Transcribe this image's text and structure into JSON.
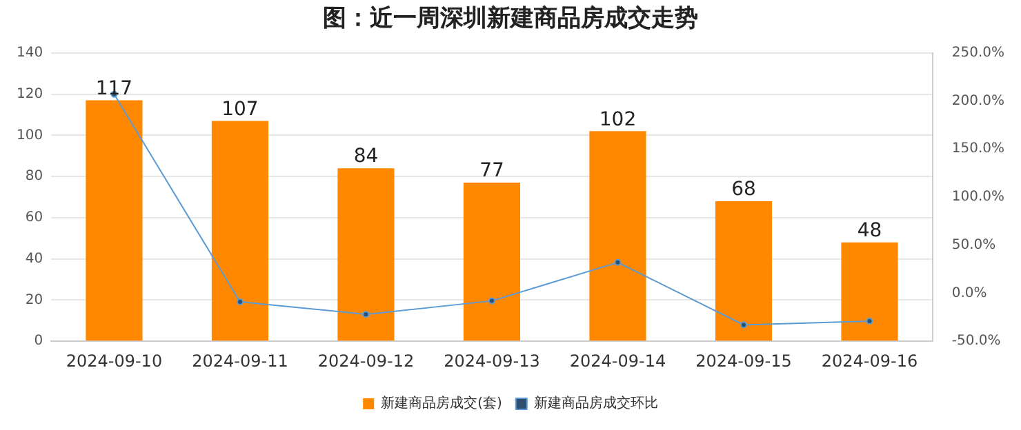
{
  "chart_data": {
    "type": "bar",
    "title": "图：近一周深圳新建商品房成交走势",
    "categories": [
      "2024-09-10",
      "2024-09-11",
      "2024-09-12",
      "2024-09-13",
      "2024-09-14",
      "2024-09-15",
      "2024-09-16"
    ],
    "series": [
      {
        "name": "新建商品房成交(套)",
        "color": "#ff8800",
        "values": [
          117,
          107,
          84,
          77,
          102,
          68,
          48
        ],
        "value_labels": [
          "117",
          "107",
          "84",
          "77",
          "102",
          "68",
          "48"
        ]
      },
      {
        "name": "新建商品房成交环比",
        "type": "line",
        "axis": "y2",
        "color": "#5b9bd5",
        "values": [
          207,
          -9,
          -22,
          -8,
          32,
          -33,
          -29
        ]
      }
    ],
    "ylim": [
      0,
      140
    ],
    "yticks": [
      0,
      20,
      40,
      60,
      80,
      100,
      120,
      140
    ],
    "y2lim": [
      -50,
      250
    ],
    "y2ticks": [
      {
        "value": -50,
        "label": "-50.0%"
      },
      {
        "value": 0,
        "label": "0.0%"
      },
      {
        "value": 50,
        "label": "50.0%"
      },
      {
        "value": 100,
        "label": "100.0%"
      },
      {
        "value": 150,
        "label": "150.0%"
      },
      {
        "value": 200,
        "label": "200.0%"
      },
      {
        "value": 250,
        "label": "250.0%"
      }
    ],
    "grid": "y",
    "legend": "bottom",
    "marker": "circle",
    "line_style": "solid"
  }
}
